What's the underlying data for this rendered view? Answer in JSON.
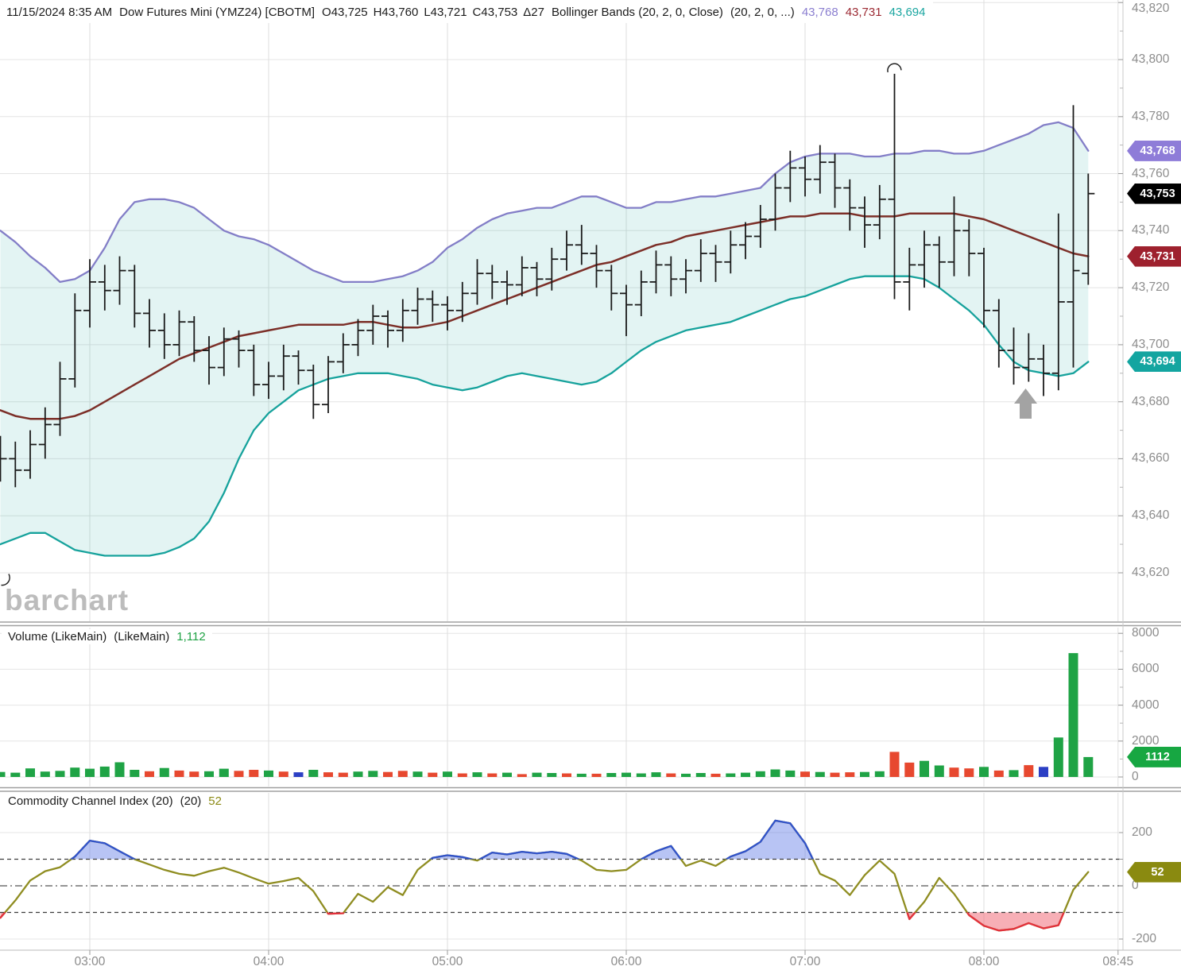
{
  "header": {
    "datetime": "11/15/2024 8:35 AM",
    "instrument": "Dow Futures Mini (YMZ24) [CBOTM]",
    "open": "O43,725",
    "high": "H43,760",
    "low": "L43,721",
    "close": "C43,753",
    "change": "Δ27",
    "study": "Bollinger Bands (20, 2, 0, Close)",
    "study_params": "(20, 2, 0, ...)",
    "upper_value": "43,768",
    "middle_value": "43,731",
    "lower_value": "43,694"
  },
  "watermark": "barchart",
  "panels": {
    "volume": {
      "name": "Volume (LikeMain)",
      "params": "(LikeMain)",
      "value": "1,112"
    },
    "cci": {
      "name": "Commodity Channel Index (20)",
      "params": "(20)",
      "value": "52"
    }
  },
  "badges": {
    "upper": "43,768",
    "last": "43,753",
    "middle": "43,731",
    "lower": "43,694",
    "volume": "1112",
    "cci": "52"
  },
  "colors": {
    "band_upper": "#837ec7",
    "band_middle": "#7c2f28",
    "band_lower": "#16a29c",
    "band_fill": "rgba(23,161,156,0.12)",
    "bar": "#1b1b1b",
    "vol_up": "#1fa345",
    "vol_down": "#e7482f",
    "vol_neutral": "#2b3fc4",
    "cci_line": "#8f8d21",
    "cci_above": "#3052cc",
    "cci_below": "#e3303c",
    "cci_fill_above": "rgba(97,125,230,0.45)",
    "cci_fill_below": "rgba(240,110,122,0.55)",
    "badge_upper": "#8e7cd8",
    "badge_last": "#000000",
    "badge_middle": "#9e212e",
    "badge_lower": "#13a5a0",
    "badge_volume": "#17a742",
    "badge_cci": "#8a8a10",
    "header_upper": "#8b7fd0",
    "header_middle": "#9c2a33",
    "header_lower": "#1ba6a1",
    "label_volume": "#1fa244",
    "label_cci": "#8c8a15",
    "arrow": "#a3a3a3",
    "grid": "#e4e4e4",
    "vgrid": "#dedede",
    "axis_text": "#8c8c8c"
  },
  "chart_data": {
    "type": "ohlc",
    "title": "Dow Futures Mini (YMZ24) 5-minute bars with Bollinger Bands (20,2,0,Close), Volume, CCI(20)",
    "x_start_time": "02:30",
    "interval_minutes": 5,
    "x_ticks": [
      {
        "label": "03:00",
        "bar": 6
      },
      {
        "label": "04:00",
        "bar": 18
      },
      {
        "label": "05:00",
        "bar": 30
      },
      {
        "label": "06:00",
        "bar": 42
      },
      {
        "label": "07:00",
        "bar": 54
      },
      {
        "label": "08:00",
        "bar": 66
      },
      {
        "label": "08:45",
        "bar": 75
      }
    ],
    "price_axis": {
      "min": 43610,
      "max": 43822,
      "ticks": [
        43820,
        43800,
        43780,
        43760,
        43740,
        43720,
        43700,
        43680,
        43660,
        43640,
        43620
      ]
    },
    "ohlc": [
      [
        43663,
        43668,
        43652,
        43660
      ],
      [
        43660,
        43666,
        43650,
        43656
      ],
      [
        43656,
        43670,
        43653,
        43665
      ],
      [
        43665,
        43678,
        43660,
        43672
      ],
      [
        43672,
        43694,
        43668,
        43688
      ],
      [
        43688,
        43718,
        43685,
        43712
      ],
      [
        43712,
        43730,
        43706,
        43722
      ],
      [
        43722,
        43728,
        43712,
        43719
      ],
      [
        43719,
        43731,
        43714,
        43726
      ],
      [
        43726,
        43728,
        43706,
        43711
      ],
      [
        43711,
        43716,
        43699,
        43705
      ],
      [
        43705,
        43711,
        43695,
        43700
      ],
      [
        43700,
        43712,
        43696,
        43708
      ],
      [
        43708,
        43710,
        43694,
        43698
      ],
      [
        43698,
        43703,
        43686,
        43692
      ],
      [
        43692,
        43706,
        43689,
        43702
      ],
      [
        43702,
        43705,
        43692,
        43698
      ],
      [
        43698,
        43700,
        43682,
        43686
      ],
      [
        43686,
        43694,
        43681,
        43689
      ],
      [
        43689,
        43700,
        43684,
        43696
      ],
      [
        43696,
        43698,
        43686,
        43691
      ],
      [
        43691,
        43693,
        43674,
        43679
      ],
      [
        43679,
        43696,
        43676,
        43694
      ],
      [
        43694,
        43704,
        43690,
        43700
      ],
      [
        43700,
        43709,
        43696,
        43705
      ],
      [
        43705,
        43714,
        43700,
        43710
      ],
      [
        43710,
        43712,
        43699,
        43705
      ],
      [
        43705,
        43716,
        43701,
        43712
      ],
      [
        43712,
        43720,
        43707,
        43716
      ],
      [
        43716,
        43719,
        43708,
        43714
      ],
      [
        43714,
        43717,
        43705,
        43712
      ],
      [
        43712,
        43722,
        43708,
        43718
      ],
      [
        43718,
        43730,
        43714,
        43725
      ],
      [
        43725,
        43728,
        43716,
        43722
      ],
      [
        43722,
        43726,
        43714,
        43721
      ],
      [
        43721,
        43731,
        43717,
        43727
      ],
      [
        43727,
        43729,
        43717,
        43723
      ],
      [
        43723,
        43734,
        43719,
        43730
      ],
      [
        43730,
        43740,
        43726,
        43735
      ],
      [
        43735,
        43742,
        43728,
        43732
      ],
      [
        43732,
        43735,
        43720,
        43726
      ],
      [
        43726,
        43728,
        43712,
        43718
      ],
      [
        43718,
        43721,
        43703,
        43714
      ],
      [
        43714,
        43726,
        43710,
        43722
      ],
      [
        43722,
        43733,
        43718,
        43728
      ],
      [
        43728,
        43731,
        43717,
        43723
      ],
      [
        43723,
        43730,
        43718,
        43726
      ],
      [
        43726,
        43737,
        43722,
        43732
      ],
      [
        43732,
        43735,
        43722,
        43729
      ],
      [
        43729,
        43740,
        43725,
        43735
      ],
      [
        43735,
        43743,
        43730,
        43738
      ],
      [
        43738,
        43749,
        43734,
        43744
      ],
      [
        43744,
        43760,
        43740,
        43755
      ],
      [
        43755,
        43768,
        43750,
        43762
      ],
      [
        43762,
        43766,
        43752,
        43758
      ],
      [
        43758,
        43770,
        43753,
        43764
      ],
      [
        43764,
        43767,
        43748,
        43755
      ],
      [
        43755,
        43758,
        43740,
        43748
      ],
      [
        43748,
        43752,
        43734,
        43742
      ],
      [
        43742,
        43756,
        43737,
        43751
      ],
      [
        43751,
        43795,
        43716,
        43722
      ],
      [
        43722,
        43734,
        43712,
        43728
      ],
      [
        43728,
        43740,
        43720,
        43735
      ],
      [
        43735,
        43738,
        43720,
        43729
      ],
      [
        43729,
        43752,
        43724,
        43740
      ],
      [
        43740,
        43744,
        43724,
        43732
      ],
      [
        43732,
        43734,
        43706,
        43712
      ],
      [
        43712,
        43716,
        43692,
        43698
      ],
      [
        43698,
        43706,
        43686,
        43692
      ],
      [
        43692,
        43704,
        43687,
        43695
      ],
      [
        43695,
        43700,
        43682,
        43690
      ],
      [
        43690,
        43746,
        43684,
        43715
      ],
      [
        43715,
        43784,
        43692,
        43726
      ],
      [
        43725,
        43760,
        43721,
        43753
      ]
    ],
    "bollinger": {
      "upper": [
        43740,
        43736,
        43731,
        43727,
        43722,
        43723,
        43726,
        43734,
        43744,
        43750,
        43751,
        43751,
        43750,
        43748,
        43744,
        43740,
        43738,
        43737,
        43735,
        43732,
        43729,
        43726,
        43724,
        43722,
        43722,
        43722,
        43723,
        43724,
        43726,
        43729,
        43734,
        43737,
        43741,
        43744,
        43746,
        43747,
        43748,
        43748,
        43750,
        43752,
        43752,
        43750,
        43748,
        43748,
        43750,
        43750,
        43751,
        43752,
        43752,
        43753,
        43754,
        43755,
        43760,
        43764,
        43766,
        43767,
        43767,
        43767,
        43766,
        43766,
        43767,
        43767,
        43768,
        43768,
        43767,
        43767,
        43768,
        43770,
        43772,
        43774,
        43777,
        43778,
        43776,
        43768
      ],
      "middle": [
        43677,
        43675,
        43674,
        43674,
        43674,
        43675,
        43677,
        43680,
        43683,
        43686,
        43689,
        43692,
        43695,
        43697,
        43699,
        43701,
        43703,
        43704,
        43705,
        43706,
        43707,
        43707,
        43707,
        43707,
        43708,
        43708,
        43707,
        43706,
        43706,
        43707,
        43708,
        43710,
        43712,
        43714,
        43716,
        43718,
        43720,
        43722,
        43724,
        43726,
        43728,
        43729,
        43731,
        43733,
        43735,
        43736,
        43738,
        43739,
        43740,
        43741,
        43742,
        43743,
        43744,
        43745,
        43745,
        43746,
        43746,
        43746,
        43745,
        43745,
        43745,
        43746,
        43746,
        43746,
        43746,
        43745,
        43744,
        43742,
        43740,
        43738,
        43736,
        43734,
        43732,
        43731
      ],
      "lower": [
        43630,
        43632,
        43634,
        43634,
        43631,
        43628,
        43627,
        43626,
        43626,
        43626,
        43626,
        43627,
        43629,
        43632,
        43638,
        43648,
        43660,
        43670,
        43676,
        43680,
        43684,
        43686,
        43688,
        43689,
        43690,
        43690,
        43690,
        43689,
        43688,
        43686,
        43685,
        43684,
        43685,
        43687,
        43689,
        43690,
        43689,
        43688,
        43687,
        43686,
        43687,
        43690,
        43694,
        43698,
        43701,
        43703,
        43705,
        43706,
        43707,
        43708,
        43710,
        43712,
        43714,
        43716,
        43717,
        43719,
        43721,
        43723,
        43724,
        43724,
        43724,
        43724,
        43723,
        43720,
        43716,
        43712,
        43707,
        43700,
        43694,
        43691,
        43690,
        43689,
        43690,
        43694
      ]
    },
    "volume": {
      "values": [
        280,
        240,
        480,
        300,
        340,
        520,
        460,
        580,
        820,
        400,
        320,
        500,
        360,
        300,
        320,
        460,
        340,
        400,
        360,
        300,
        260,
        400,
        260,
        240,
        300,
        340,
        280,
        340,
        300,
        240,
        300,
        200,
        260,
        200,
        240,
        160,
        240,
        220,
        200,
        180,
        180,
        220,
        240,
        200,
        260,
        200,
        180,
        220,
        180,
        200,
        240,
        320,
        420,
        360,
        300,
        280,
        240,
        260,
        280,
        320,
        1400,
        800,
        900,
        640,
        520,
        480,
        560,
        360,
        380,
        660,
        560,
        2200,
        6900,
        1112
      ],
      "bar_colors": [
        "g",
        "g",
        "g",
        "g",
        "g",
        "g",
        "g",
        "g",
        "g",
        "g",
        "r",
        "g",
        "r",
        "r",
        "g",
        "g",
        "r",
        "r",
        "g",
        "r",
        "b",
        "g",
        "r",
        "r",
        "g",
        "g",
        "r",
        "r",
        "g",
        "r",
        "g",
        "r",
        "g",
        "r",
        "g",
        "r",
        "g",
        "g",
        "r",
        "g",
        "r",
        "g",
        "g",
        "g",
        "g",
        "r",
        "g",
        "g",
        "r",
        "g",
        "g",
        "g",
        "g",
        "g",
        "r",
        "g",
        "r",
        "r",
        "g",
        "g",
        "r",
        "r",
        "g",
        "g",
        "r",
        "r",
        "g",
        "r",
        "g",
        "r",
        "b",
        "g",
        "g",
        "g"
      ],
      "axis_ticks": [
        8000,
        6000,
        4000,
        2000,
        0
      ],
      "last": 1112
    },
    "cci": {
      "values": [
        -120,
        -55,
        20,
        55,
        70,
        110,
        170,
        160,
        130,
        100,
        80,
        60,
        45,
        38,
        55,
        68,
        50,
        28,
        8,
        18,
        30,
        -20,
        -105,
        -103,
        -30,
        -60,
        -5,
        -35,
        60,
        105,
        115,
        108,
        95,
        125,
        118,
        128,
        122,
        128,
        120,
        95,
        60,
        55,
        60,
        100,
        130,
        150,
        75,
        95,
        75,
        110,
        130,
        165,
        245,
        235,
        160,
        45,
        20,
        -35,
        40,
        95,
        45,
        -125,
        -60,
        30,
        -30,
        -110,
        -150,
        -168,
        -162,
        -140,
        -160,
        -148,
        -15,
        52
      ],
      "levels": {
        "overbought": 100,
        "zero": 0,
        "oversold": -100
      },
      "axis_ticks": [
        200,
        0,
        -200
      ],
      "last": 52
    },
    "annotations": {
      "up_arrow": {
        "bar": 68
      },
      "high_marker": {
        "bar": 60
      },
      "left_edge_marker": true
    },
    "last": {
      "price": 43753,
      "upper": 43768,
      "middle": 43731,
      "lower": 43694,
      "volume": 1112,
      "cci": 52
    }
  }
}
